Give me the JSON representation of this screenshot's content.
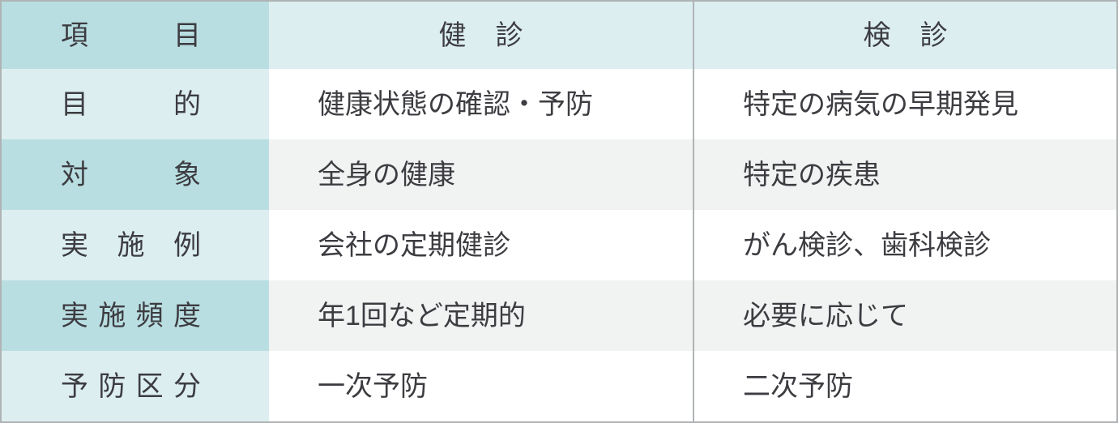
{
  "table": {
    "header": {
      "item": "項目",
      "health": "健診",
      "screening": "検診"
    },
    "rows": [
      {
        "label": "目的",
        "health": "健康状態の確認・予防",
        "screening": "特定の病気の早期発見"
      },
      {
        "label": "対象",
        "health": "全身の健康",
        "screening": "特定の疾患"
      },
      {
        "label": "実施例",
        "health": "会社の定期健診",
        "screening": "がん検診、歯科検診"
      },
      {
        "label": "実施頻度",
        "health": "年1回など定期的",
        "screening": "必要に応じて"
      },
      {
        "label": "予防区分",
        "health": "一次予防",
        "screening": "二次予防"
      }
    ],
    "colors": {
      "label_column_dark_teal": "#b9dee1",
      "label_column_light_teal": "#dceef0",
      "row_alt_gray": "#f1f2f2",
      "row_white": "#ffffff",
      "border_gray": "#b0b3b5",
      "text": "#3c3c41"
    }
  },
  "chart_data": {
    "type": "table",
    "columns": [
      "項目",
      "健診",
      "検診"
    ],
    "rows": [
      [
        "目的",
        "健康状態の確認・予防",
        "特定の病気の早期発見"
      ],
      [
        "対象",
        "全身の健康",
        "特定の疾患"
      ],
      [
        "実施例",
        "会社の定期健診",
        "がん検診、歯科検診"
      ],
      [
        "実施頻度",
        "年1回など定期的",
        "必要に応じて"
      ],
      [
        "予防区分",
        "一次予防",
        "二次予防"
      ]
    ],
    "layout_hints": {
      "label_column_justified_spacing": true,
      "alternating_data_row_fills": [
        "#ffffff",
        "#f1f2f2"
      ],
      "single_vertical_divider_between_data_columns": true
    }
  }
}
